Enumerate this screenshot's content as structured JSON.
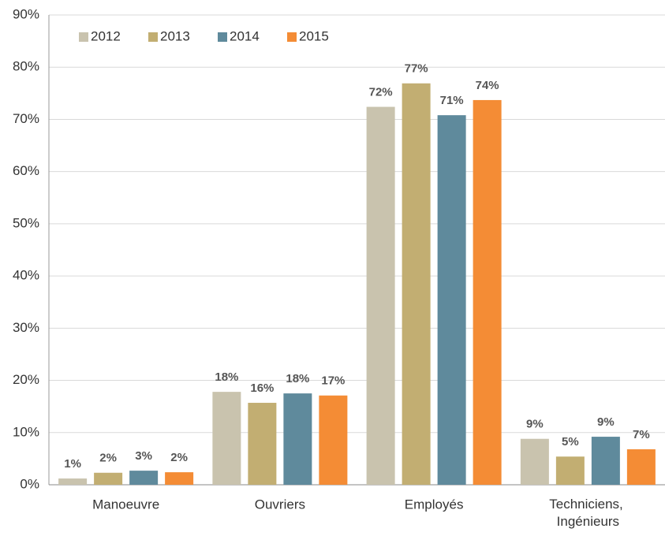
{
  "chart_data": {
    "type": "bar",
    "categories": [
      "Manoeuvre",
      "Ouvriers",
      "Employés",
      "Techniciens, Ingénieurs"
    ],
    "series": [
      {
        "name": "2012",
        "color": "#c9c3ae",
        "values": [
          1.2,
          17.8,
          72.4,
          8.8
        ],
        "value_labels": [
          "1%",
          "18%",
          "72%",
          "9%"
        ]
      },
      {
        "name": "2013",
        "color": "#c2ae72",
        "values": [
          2.3,
          15.7,
          76.9,
          5.4
        ],
        "value_labels": [
          "2%",
          "16%",
          "77%",
          "5%"
        ]
      },
      {
        "name": "2014",
        "color": "#5f8a9c",
        "values": [
          2.7,
          17.5,
          70.8,
          9.2
        ],
        "value_labels": [
          "3%",
          "18%",
          "71%",
          "9%"
        ]
      },
      {
        "name": "2015",
        "color": "#f48c35",
        "values": [
          2.4,
          17.1,
          73.7,
          6.8
        ],
        "value_labels": [
          "2%",
          "17%",
          "74%",
          "7%"
        ]
      }
    ],
    "ylim": [
      0,
      90
    ],
    "yticks": [
      {
        "value": 0,
        "label": "0%"
      },
      {
        "value": 10,
        "label": "10%"
      },
      {
        "value": 20,
        "label": "20%"
      },
      {
        "value": 30,
        "label": "30%"
      },
      {
        "value": 40,
        "label": "40%"
      },
      {
        "value": 50,
        "label": "50%"
      },
      {
        "value": 60,
        "label": "60%"
      },
      {
        "value": 70,
        "label": "70%"
      },
      {
        "value": 80,
        "label": "80%"
      },
      {
        "value": 90,
        "label": "90%"
      }
    ],
    "grid": true,
    "legend": "upper left"
  }
}
